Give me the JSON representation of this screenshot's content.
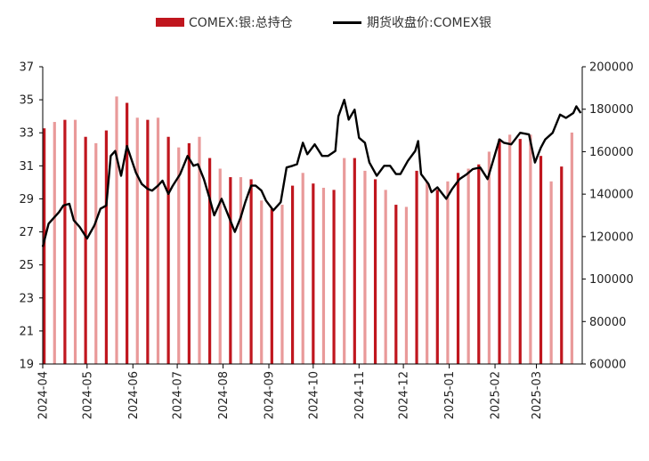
{
  "chart_data": {
    "type": "bar+line",
    "title": "",
    "legend": {
      "position": "top-center",
      "items": [
        {
          "label": "COMEX:银:总持仓",
          "kind": "bar",
          "color": "#c0161e"
        },
        {
          "label": "期货收盘价:COMEX银",
          "kind": "line",
          "color": "#000000"
        }
      ]
    },
    "x_ticks": [
      "2024-04",
      "2024-05",
      "2024-06",
      "2024-07",
      "2024-08",
      "2024-09",
      "2024-10",
      "2024-11",
      "2024-12",
      "2025-01",
      "2025-02",
      "2025-03"
    ],
    "y_left": {
      "min": 19,
      "max": 37,
      "ticks": [
        "19",
        "21",
        "23",
        "25",
        "27",
        "29",
        "31",
        "33",
        "35",
        "37"
      ],
      "axis": "price"
    },
    "y_right": {
      "min": 60000,
      "max": 200000,
      "ticks": [
        "60000",
        "80000",
        "100000",
        "120000",
        "140000",
        "160000",
        "180000",
        "200000"
      ],
      "axis": "open interest"
    },
    "grid": false,
    "series": [
      {
        "name": "COMEX:银:总持仓",
        "type": "bar",
        "axis": "right",
        "color": "#c0161e",
        "light_color": "#e99a9a",
        "points": [
          {
            "x": "2024-04-02",
            "v": 171000
          },
          {
            "x": "2024-04-09",
            "v": 174000
          },
          {
            "x": "2024-04-16",
            "v": 175000
          },
          {
            "x": "2024-04-23",
            "v": 175000
          },
          {
            "x": "2024-04-30",
            "v": 167000
          },
          {
            "x": "2024-05-07",
            "v": 164000
          },
          {
            "x": "2024-05-14",
            "v": 170000
          },
          {
            "x": "2024-05-21",
            "v": 186000
          },
          {
            "x": "2024-05-28",
            "v": 183000
          },
          {
            "x": "2024-06-04",
            "v": 176000
          },
          {
            "x": "2024-06-11",
            "v": 175000
          },
          {
            "x": "2024-06-18",
            "v": 176000
          },
          {
            "x": "2024-06-25",
            "v": 167000
          },
          {
            "x": "2024-07-02",
            "v": 162000
          },
          {
            "x": "2024-07-09",
            "v": 164000
          },
          {
            "x": "2024-07-16",
            "v": 167000
          },
          {
            "x": "2024-07-23",
            "v": 157000
          },
          {
            "x": "2024-07-30",
            "v": 152000
          },
          {
            "x": "2024-08-06",
            "v": 148000
          },
          {
            "x": "2024-08-13",
            "v": 148000
          },
          {
            "x": "2024-08-20",
            "v": 147000
          },
          {
            "x": "2024-08-27",
            "v": 137000
          },
          {
            "x": "2024-09-03",
            "v": 133000
          },
          {
            "x": "2024-09-10",
            "v": 135000
          },
          {
            "x": "2024-09-17",
            "v": 144000
          },
          {
            "x": "2024-09-24",
            "v": 150000
          },
          {
            "x": "2024-10-01",
            "v": 145000
          },
          {
            "x": "2024-10-08",
            "v": 143000
          },
          {
            "x": "2024-10-15",
            "v": 142000
          },
          {
            "x": "2024-10-22",
            "v": 157000
          },
          {
            "x": "2024-10-29",
            "v": 157000
          },
          {
            "x": "2024-11-05",
            "v": 151000
          },
          {
            "x": "2024-11-12",
            "v": 147000
          },
          {
            "x": "2024-11-19",
            "v": 142000
          },
          {
            "x": "2024-11-26",
            "v": 135000
          },
          {
            "x": "2024-12-03",
            "v": 134000
          },
          {
            "x": "2024-12-10",
            "v": 151000
          },
          {
            "x": "2024-12-17",
            "v": 146000
          },
          {
            "x": "2024-12-24",
            "v": 142000
          },
          {
            "x": "2024-12-31",
            "v": 146000
          },
          {
            "x": "2025-01-07",
            "v": 150000
          },
          {
            "x": "2025-01-14",
            "v": 152000
          },
          {
            "x": "2025-01-21",
            "v": 154000
          },
          {
            "x": "2025-01-28",
            "v": 160000
          },
          {
            "x": "2025-02-04",
            "v": 166000
          },
          {
            "x": "2025-02-11",
            "v": 168000
          },
          {
            "x": "2025-02-18",
            "v": 166000
          },
          {
            "x": "2025-02-25",
            "v": 168000
          },
          {
            "x": "2025-03-04",
            "v": 158000
          },
          {
            "x": "2025-03-11",
            "v": 146000
          },
          {
            "x": "2025-03-18",
            "v": 153000
          },
          {
            "x": "2025-03-25",
            "v": 169000
          }
        ]
      },
      {
        "name": "期货收盘价:COMEX银",
        "type": "line",
        "axis": "left",
        "color": "#000000",
        "points": [
          {
            "x": "2024-04-01",
            "v": 26.1
          },
          {
            "x": "2024-04-05",
            "v": 27.5
          },
          {
            "x": "2024-04-12",
            "v": 28.2
          },
          {
            "x": "2024-04-15",
            "v": 28.6
          },
          {
            "x": "2024-04-19",
            "v": 28.7
          },
          {
            "x": "2024-04-22",
            "v": 27.7
          },
          {
            "x": "2024-04-26",
            "v": 27.3
          },
          {
            "x": "2024-05-01",
            "v": 26.6
          },
          {
            "x": "2024-05-06",
            "v": 27.4
          },
          {
            "x": "2024-05-10",
            "v": 28.4
          },
          {
            "x": "2024-05-14",
            "v": 28.6
          },
          {
            "x": "2024-05-17",
            "v": 31.6
          },
          {
            "x": "2024-05-20",
            "v": 31.9
          },
          {
            "x": "2024-05-24",
            "v": 30.4
          },
          {
            "x": "2024-05-28",
            "v": 32.2
          },
          {
            "x": "2024-06-03",
            "v": 30.6
          },
          {
            "x": "2024-06-07",
            "v": 29.9
          },
          {
            "x": "2024-06-11",
            "v": 29.6
          },
          {
            "x": "2024-06-14",
            "v": 29.5
          },
          {
            "x": "2024-06-18",
            "v": 29.8
          },
          {
            "x": "2024-06-21",
            "v": 30.1
          },
          {
            "x": "2024-06-25",
            "v": 29.3
          },
          {
            "x": "2024-06-28",
            "v": 29.8
          },
          {
            "x": "2024-07-03",
            "v": 30.5
          },
          {
            "x": "2024-07-08",
            "v": 31.6
          },
          {
            "x": "2024-07-12",
            "v": 31.0
          },
          {
            "x": "2024-07-15",
            "v": 31.1
          },
          {
            "x": "2024-07-19",
            "v": 30.2
          },
          {
            "x": "2024-07-23",
            "v": 29.0
          },
          {
            "x": "2024-07-26",
            "v": 28.0
          },
          {
            "x": "2024-07-31",
            "v": 29.0
          },
          {
            "x": "2024-08-05",
            "v": 27.9
          },
          {
            "x": "2024-08-09",
            "v": 27.0
          },
          {
            "x": "2024-08-13",
            "v": 27.9
          },
          {
            "x": "2024-08-16",
            "v": 28.8
          },
          {
            "x": "2024-08-20",
            "v": 29.8
          },
          {
            "x": "2024-08-23",
            "v": 29.8
          },
          {
            "x": "2024-08-27",
            "v": 29.5
          },
          {
            "x": "2024-08-30",
            "v": 28.9
          },
          {
            "x": "2024-09-04",
            "v": 28.3
          },
          {
            "x": "2024-09-09",
            "v": 28.8
          },
          {
            "x": "2024-09-13",
            "v": 30.9
          },
          {
            "x": "2024-09-17",
            "v": 31.0
          },
          {
            "x": "2024-09-20",
            "v": 31.1
          },
          {
            "x": "2024-09-24",
            "v": 32.4
          },
          {
            "x": "2024-09-27",
            "v": 31.7
          },
          {
            "x": "2024-10-02",
            "v": 32.3
          },
          {
            "x": "2024-10-07",
            "v": 31.6
          },
          {
            "x": "2024-10-11",
            "v": 31.6
          },
          {
            "x": "2024-10-16",
            "v": 31.9
          },
          {
            "x": "2024-10-18",
            "v": 34.0
          },
          {
            "x": "2024-10-22",
            "v": 35.0
          },
          {
            "x": "2024-10-25",
            "v": 33.8
          },
          {
            "x": "2024-10-29",
            "v": 34.4
          },
          {
            "x": "2024-11-01",
            "v": 32.7
          },
          {
            "x": "2024-11-05",
            "v": 32.4
          },
          {
            "x": "2024-11-08",
            "v": 31.2
          },
          {
            "x": "2024-11-13",
            "v": 30.4
          },
          {
            "x": "2024-11-18",
            "v": 31.0
          },
          {
            "x": "2024-11-22",
            "v": 31.0
          },
          {
            "x": "2024-11-26",
            "v": 30.5
          },
          {
            "x": "2024-11-29",
            "v": 30.5
          },
          {
            "x": "2024-12-04",
            "v": 31.3
          },
          {
            "x": "2024-12-09",
            "v": 31.9
          },
          {
            "x": "2024-12-11",
            "v": 32.5
          },
          {
            "x": "2024-12-13",
            "v": 30.5
          },
          {
            "x": "2024-12-18",
            "v": 29.9
          },
          {
            "x": "2024-12-20",
            "v": 29.4
          },
          {
            "x": "2024-12-24",
            "v": 29.7
          },
          {
            "x": "2024-12-30",
            "v": 29.0
          },
          {
            "x": "2025-01-03",
            "v": 29.6
          },
          {
            "x": "2025-01-08",
            "v": 30.2
          },
          {
            "x": "2025-01-13",
            "v": 30.5
          },
          {
            "x": "2025-01-17",
            "v": 30.8
          },
          {
            "x": "2025-01-22",
            "v": 30.9
          },
          {
            "x": "2025-01-27",
            "v": 30.2
          },
          {
            "x": "2025-01-31",
            "v": 31.4
          },
          {
            "x": "2025-02-04",
            "v": 32.6
          },
          {
            "x": "2025-02-07",
            "v": 32.4
          },
          {
            "x": "2025-02-12",
            "v": 32.3
          },
          {
            "x": "2025-02-18",
            "v": 33.0
          },
          {
            "x": "2025-02-24",
            "v": 32.9
          },
          {
            "x": "2025-02-28",
            "v": 31.2
          },
          {
            "x": "2025-03-04",
            "v": 32.1
          },
          {
            "x": "2025-03-07",
            "v": 32.6
          },
          {
            "x": "2025-03-12",
            "v": 33.0
          },
          {
            "x": "2025-03-17",
            "v": 34.1
          },
          {
            "x": "2025-03-21",
            "v": 33.9
          },
          {
            "x": "2025-03-26",
            "v": 34.2
          },
          {
            "x": "2025-03-28",
            "v": 34.6
          },
          {
            "x": "2025-03-31",
            "v": 34.2
          }
        ]
      }
    ]
  }
}
